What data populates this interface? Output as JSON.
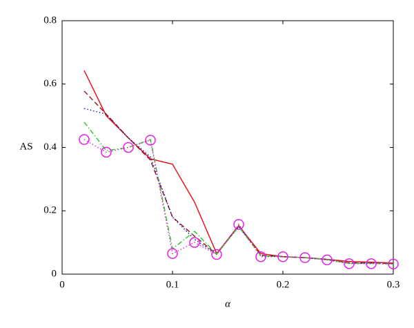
{
  "chart_data": {
    "type": "line",
    "xlabel": "α",
    "ylabel": "AS",
    "x": [
      0.02,
      0.04,
      0.06,
      0.08,
      0.1,
      0.12,
      0.14,
      0.16,
      0.18,
      0.2,
      0.22,
      0.24,
      0.26,
      0.28,
      0.3
    ],
    "series": [
      {
        "color": "#e8141c",
        "dash": "solid",
        "values": [
          0.643,
          0.5,
          0.43,
          0.364,
          0.347,
          0.227,
          0.065,
          0.153,
          0.065,
          0.055,
          0.052,
          0.047,
          0.04,
          0.038,
          0.035
        ]
      },
      {
        "color": "#9b1b30",
        "dash": "dashed",
        "values": [
          0.578,
          0.505,
          0.43,
          0.36,
          0.18,
          0.12,
          0.063,
          0.153,
          0.06,
          0.055,
          0.052,
          0.046,
          0.036,
          0.035,
          0.033
        ]
      },
      {
        "color": "#1a1a8c",
        "dash": "dotted",
        "values": [
          0.523,
          0.505,
          0.43,
          0.37,
          0.18,
          0.11,
          0.063,
          0.15,
          0.058,
          0.055,
          0.052,
          0.046,
          0.035,
          0.035,
          0.033
        ]
      },
      {
        "color": "#2ecc2e",
        "dash": "dashdot",
        "values": [
          0.48,
          0.39,
          0.4,
          0.425,
          0.08,
          0.135,
          0.063,
          0.15,
          0.058,
          0.055,
          0.052,
          0.046,
          0.034,
          0.034,
          0.032
        ]
      },
      {
        "color": "#e020e0",
        "dash": "dotted",
        "marker": "circle",
        "values": [
          0.425,
          0.385,
          0.4,
          0.423,
          0.065,
          0.1,
          0.062,
          0.157,
          0.055,
          0.055,
          0.052,
          0.045,
          0.033,
          0.033,
          0.032
        ]
      }
    ],
    "xlim": [
      0,
      0.3
    ],
    "xticks": [
      0,
      0.1,
      0.2,
      0.3
    ],
    "ylim": [
      0,
      0.8
    ],
    "yticks": [
      0,
      0.2,
      0.4,
      0.6,
      0.8
    ]
  }
}
